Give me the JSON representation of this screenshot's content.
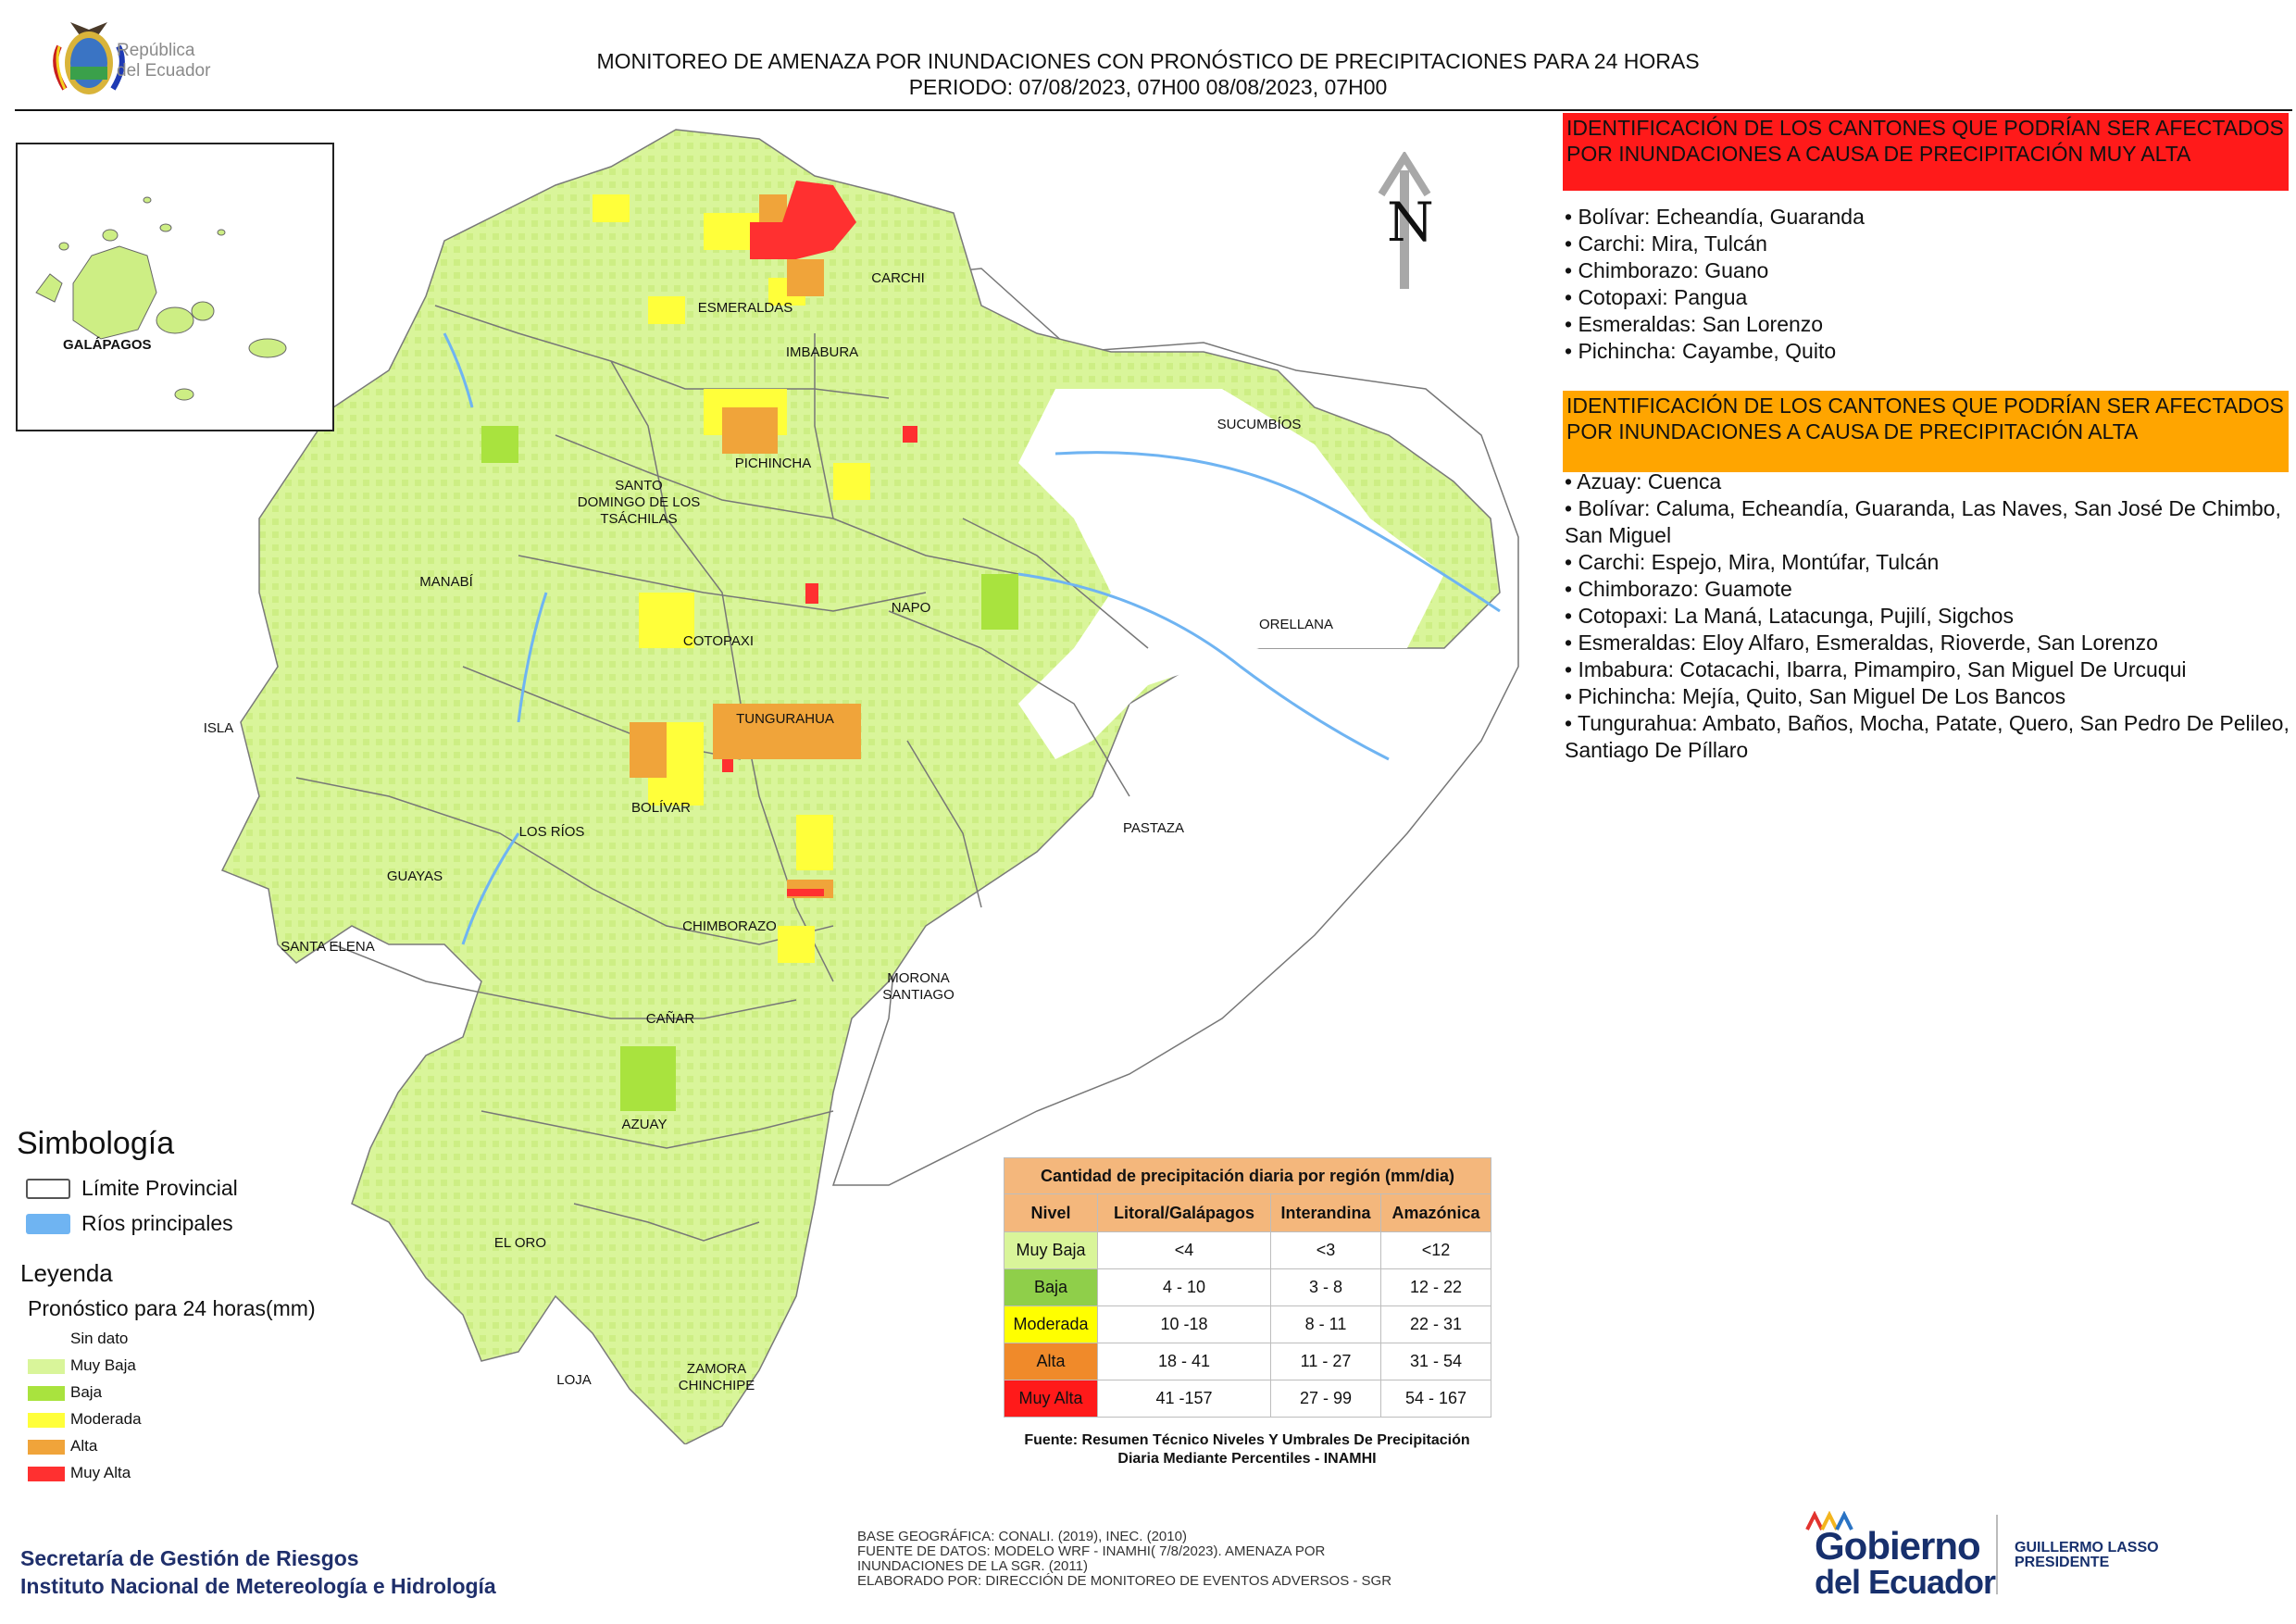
{
  "header": {
    "logo_text_line1": "República",
    "logo_text_line2": "del Ecuador",
    "title_line1": "MONITOREO DE AMENAZA POR INUNDACIONES  CON PRONÓSTICO DE  PRECIPITACIONES PARA 24 HORAS",
    "title_line2": "PERIODO: 07/08/2023, 07H00 08/08/2023, 07H00"
  },
  "inset": {
    "label": "GALÁPAGOS"
  },
  "north_arrow": {
    "letter": "N"
  },
  "map_labels": [
    {
      "id": "esmeraldas",
      "text": "ESMERALDAS"
    },
    {
      "id": "carchi",
      "text": "CARCHI"
    },
    {
      "id": "imbabura",
      "text": "IMBABURA"
    },
    {
      "id": "sucumbios",
      "text": "SUCUMBÍOS"
    },
    {
      "id": "pichincha",
      "text": "PICHINCHA"
    },
    {
      "id": "santo_domingo",
      "text": "SANTO\nDOMINGO DE LOS\nTSÁCHILAS"
    },
    {
      "id": "manabi",
      "text": "MANABÍ"
    },
    {
      "id": "napo",
      "text": "NAPO"
    },
    {
      "id": "orellana",
      "text": "ORELLANA"
    },
    {
      "id": "cotopaxi",
      "text": "COTOPAXI"
    },
    {
      "id": "isla",
      "text": "ISLA"
    },
    {
      "id": "tungurahua",
      "text": "TUNGURAHUA"
    },
    {
      "id": "bolivar",
      "text": "BOLÍVAR"
    },
    {
      "id": "los_rios",
      "text": "LOS RÍOS"
    },
    {
      "id": "pastaza",
      "text": "PASTAZA"
    },
    {
      "id": "guayas",
      "text": "GUAYAS"
    },
    {
      "id": "chimborazo",
      "text": "CHIMBORAZO"
    },
    {
      "id": "santa_elena",
      "text": "SANTA ELENA"
    },
    {
      "id": "morona",
      "text": "MORONA\nSANTIAGO"
    },
    {
      "id": "canar",
      "text": "CAÑAR"
    },
    {
      "id": "azuay",
      "text": "AZUAY"
    },
    {
      "id": "el_oro",
      "text": "EL ORO"
    },
    {
      "id": "loja",
      "text": "LOJA"
    },
    {
      "id": "zamora",
      "text": "ZAMORA\nCHINCHIPE"
    }
  ],
  "panel_muy_alta": {
    "heading": "IDENTIFICACIÓN DE LOS CANTONES QUE PODRÍAN SER AFECTADOS POR INUNDACIONES  A CAUSA DE PRECIPITACIÓN MUY ALTA",
    "color": "#ff1a1a",
    "items": [
      "• Bolívar: Echeandía, Guaranda",
      "• Carchi: Mira, Tulcán",
      "• Chimborazo: Guano",
      "• Cotopaxi: Pangua",
      "• Esmeraldas: San Lorenzo",
      "• Pichincha: Cayambe, Quito"
    ]
  },
  "panel_alta": {
    "heading": "IDENTIFICACIÓN DE LOS CANTONES QUE  PODRÍAN SER AFECTADOS POR INUNDACIONES  A CAUSA DE PRECIPITACIÓN ALTA",
    "color": "#ffa500",
    "items": [
      "• Azuay: Cuenca",
      "• Bolívar: Caluma, Echeandía, Guaranda, Las Naves, San José De Chimbo, San Miguel",
      "• Carchi: Espejo, Mira, Montúfar, Tulcán",
      "• Chimborazo: Guamote",
      "• Cotopaxi: La Maná, Latacunga, Pujilí, Sigchos",
      "• Esmeraldas: Eloy Alfaro, Esmeraldas, Rioverde, San Lorenzo",
      "• Imbabura: Cotacachi, Ibarra, Pimampiro, San Miguel De Urcuqui",
      "• Pichincha: Mejía, Quito, San Miguel De Los Bancos",
      "• Tungurahua: Ambato, Baños, Mocha, Patate, Quero, San Pedro De Pelileo, Santiago De Píllaro"
    ]
  },
  "symbology": {
    "title": "Simbología",
    "items": [
      {
        "label": "Límite Provincial",
        "icon": "provincial-boundary-swatch"
      },
      {
        "label": "Ríos principales",
        "icon": "rivers-swatch",
        "color": "#6fb4f2"
      }
    ]
  },
  "legend": {
    "title": "Leyenda",
    "subtitle": "Pronóstico para 24 horas(mm)",
    "items": [
      {
        "label": "Sin dato",
        "color": "#ffffff"
      },
      {
        "label": "Muy Baja",
        "color": "#d9f59a"
      },
      {
        "label": "Baja",
        "color": "#a9e33e"
      },
      {
        "label": "Moderada",
        "color": "#ffff3a"
      },
      {
        "label": "Alta",
        "color": "#f0a43a"
      },
      {
        "label": "Muy Alta",
        "color": "#ff3030"
      }
    ]
  },
  "threshold_table": {
    "caption": "Cantidad de precipitación diaria por región (mm/dia)",
    "headers": [
      "Nivel",
      "Litoral/Galápagos",
      "Interandina",
      "Amazónica"
    ],
    "rows": [
      {
        "level": "Muy Baja",
        "color": "#d9f59a",
        "litoral": "<4",
        "interandina": "<3",
        "amazonica": "<12"
      },
      {
        "level": "Baja",
        "color": "#8fcf4a",
        "litoral": "4 - 10",
        "interandina": "3 - 8",
        "amazonica": "12 - 22"
      },
      {
        "level": "Moderada",
        "color": "#ffff00",
        "litoral": "10 -18",
        "interandina": "8 - 11",
        "amazonica": "22 - 31"
      },
      {
        "level": "Alta",
        "color": "#f08a2a",
        "litoral": "18 - 41",
        "interandina": "11 - 27",
        "amazonica": "31 - 54"
      },
      {
        "level": "Muy Alta",
        "color": "#ff1a1a",
        "litoral": "41 -157",
        "interandina": "27 - 99",
        "amazonica": "54 - 167"
      }
    ],
    "source": "Fuente: Resumen Técnico Niveles Y Umbrales De Precipitación Diaria Mediante Percentiles - INAMHI"
  },
  "footer": {
    "org_line1": "Secretaría de Gestión de Riesgos",
    "org_line2": "Instituto Nacional de Metereología e Hidrología",
    "credits": [
      "BASE GEOGRÁFICA: CONALI. (2019), INEC. (2010)",
      "FUENTE DE DATOS: MODELO WRF - INAMHI( 7/8/2023).  AMENAZA POR",
      "INUNDACIONES DE LA SGR. (2011)",
      "ELABORADO POR: DIRECCIÓN DE MONITOREO DE EVENTOS ADVERSOS - SGR"
    ],
    "gob_line1": "Gobierno",
    "gob_line2": "del Ecuador",
    "president_line1": "GUILLERMO LASSO",
    "president_line2": "PRESIDENTE"
  }
}
